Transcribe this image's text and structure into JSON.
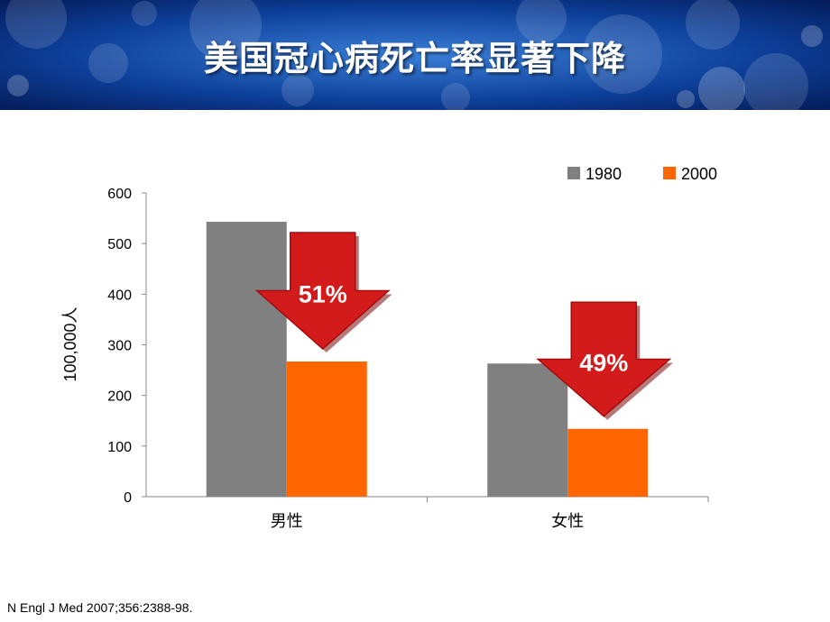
{
  "slide": {
    "title": "美国冠心病死亡率显著下降",
    "citation": "N  Engl J Med 2007;356:2388-98."
  },
  "colors": {
    "series_1980": "#808080",
    "series_2000": "#ff6600",
    "arrow_red": "#d41b1b",
    "banner_blue": "#0a3a8c"
  },
  "chart_data": {
    "type": "bar",
    "categories": [
      "男性",
      "女性"
    ],
    "series": [
      {
        "name": "1980",
        "values": [
          543,
          263
        ]
      },
      {
        "name": "2000",
        "values": [
          267,
          134
        ]
      }
    ],
    "ylabel": "100,000人",
    "ylim": [
      0,
      600
    ],
    "yticks": [
      "0",
      "100",
      "200",
      "300",
      "400",
      "500",
      "600"
    ],
    "grid": false,
    "legend": "top-right",
    "annotations": [
      {
        "category": "男性",
        "text": "51%"
      },
      {
        "category": "女性",
        "text": "49%"
      }
    ]
  }
}
